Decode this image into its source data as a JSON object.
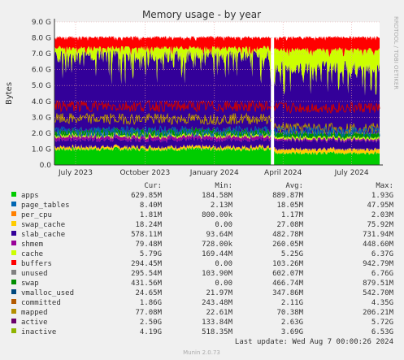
{
  "chart_data": {
    "type": "area",
    "title": "Memory usage - by year",
    "ylabel": "Bytes",
    "side_label": "RRDTOOL / TOBI OETIKER",
    "ylim": [
      0,
      9.0
    ],
    "y_ticks": [
      "0.0",
      "1.0 G",
      "2.0 G",
      "3.0 G",
      "4.0 G",
      "5.0 G",
      "6.0 G",
      "7.0 G",
      "8.0 G",
      "9.0 G"
    ],
    "y_tick_values": [
      0,
      1,
      2,
      3,
      4,
      5,
      6,
      7,
      8,
      9
    ],
    "x_range": [
      "2023-06-03",
      "2024-08-07"
    ],
    "x_ticks": [
      {
        "date": "2023-07-01",
        "label": "July 2023"
      },
      {
        "date": "2023-10-01",
        "label": "October 2023"
      },
      {
        "date": "2024-01-01",
        "label": "January 2024"
      },
      {
        "date": "2024-04-01",
        "label": "April 2024"
      },
      {
        "date": "2024-07-01",
        "label": "July 2024"
      }
    ],
    "gap_date": "2024-03-18",
    "grid": true,
    "series_stack": [
      {
        "name": "apps",
        "color": "#00cc00",
        "before": 1.0,
        "after": 0.75
      },
      {
        "name": "page_tables",
        "color": "#0066b3",
        "before": 0.0,
        "after": 0.0
      },
      {
        "name": "per_cpu",
        "color": "#ff8000",
        "before": 0.0,
        "after": 0.0
      },
      {
        "name": "swap_cache",
        "color": "#ffcc00",
        "before": 0.15,
        "after": 0.25
      },
      {
        "name": "slab_cache",
        "color": "#330099",
        "before": 0.45,
        "after": 0.55
      },
      {
        "name": "shmem",
        "color": "#990099",
        "before": 0.2,
        "after": 0.1
      },
      {
        "name": "cache",
        "color": "#ccff00",
        "before": 0.1,
        "after": 0.1
      },
      {
        "name": "buffers",
        "color": "#ff0000",
        "before": 0.0,
        "after": 0.0
      },
      {
        "name": "unused",
        "color": "#808080",
        "before": 0.0,
        "after": 0.0
      },
      {
        "name": "swap",
        "color": "#008f00",
        "before": 0.3,
        "after": 0.3
      },
      {
        "name": "vmalloc_used",
        "color": "#00487d",
        "before": 0.0,
        "after": 0.0
      }
    ],
    "stack_note": "",
    "big_layers": {
      "before": {
        "cache_top": 7.3,
        "unused_top": 7.5,
        "swap_top": 8.1
      },
      "after": {
        "cache_top": 6.6,
        "unused_top": 7.4,
        "swap_top": 8.1
      }
    },
    "lines": {
      "inactive": {
        "color": "#cc0000",
        "before": 3.7,
        "after": 3.6
      },
      "active": {
        "color": "#b38f00",
        "before": 2.9,
        "after": 2.3
      },
      "committed": {
        "color": "#0066b3",
        "before": 2.1,
        "after": 2.1
      }
    },
    "legend": [
      {
        "name": "apps",
        "color": "#00cc00",
        "cur": "629.85M",
        "min": "184.58M",
        "avg": "889.87M",
        "max": "1.93G"
      },
      {
        "name": "page_tables",
        "color": "#0066b3",
        "cur": "8.40M",
        "min": "2.13M",
        "avg": "18.05M",
        "max": "47.95M"
      },
      {
        "name": "per_cpu",
        "color": "#ff8000",
        "cur": "1.81M",
        "min": "800.00k",
        "avg": "1.17M",
        "max": "2.03M"
      },
      {
        "name": "swap_cache",
        "color": "#ffcc00",
        "cur": "18.24M",
        "min": "0.00",
        "avg": "27.08M",
        "max": "75.92M"
      },
      {
        "name": "slab_cache",
        "color": "#330099",
        "cur": "578.11M",
        "min": "93.64M",
        "avg": "482.78M",
        "max": "731.94M"
      },
      {
        "name": "shmem",
        "color": "#990099",
        "cur": "79.48M",
        "min": "728.00k",
        "avg": "260.05M",
        "max": "448.60M"
      },
      {
        "name": "cache",
        "color": "#ccff00",
        "cur": "5.79G",
        "min": "169.44M",
        "avg": "5.25G",
        "max": "6.37G"
      },
      {
        "name": "buffers",
        "color": "#ff0000",
        "cur": "294.45M",
        "min": "0.00",
        "avg": "103.26M",
        "max": "942.79M"
      },
      {
        "name": "unused",
        "color": "#808080",
        "cur": "295.54M",
        "min": "103.90M",
        "avg": "602.07M",
        "max": "6.76G"
      },
      {
        "name": "swap",
        "color": "#008f00",
        "cur": "431.56M",
        "min": "0.00",
        "avg": "466.74M",
        "max": "879.51M"
      },
      {
        "name": "vmalloc_used",
        "color": "#00487d",
        "cur": "24.65M",
        "min": "21.97M",
        "avg": "347.86M",
        "max": "542.70M"
      },
      {
        "name": "committed",
        "color": "#b35a00",
        "cur": "1.86G",
        "min": "243.48M",
        "avg": "2.11G",
        "max": "4.35G"
      },
      {
        "name": "mapped",
        "color": "#b38f00",
        "cur": "77.08M",
        "min": "22.61M",
        "avg": "70.38M",
        "max": "206.21M"
      },
      {
        "name": "active",
        "color": "#6b006b",
        "cur": "2.50G",
        "min": "133.84M",
        "avg": "2.63G",
        "max": "5.72G"
      },
      {
        "name": "inactive",
        "color": "#8fb300",
        "cur": "4.19G",
        "min": "518.35M",
        "avg": "3.69G",
        "max": "6.53G"
      }
    ],
    "legend_headers": [
      "Cur:",
      "Min:",
      "Avg:",
      "Max:"
    ],
    "last_update": "Last update: Wed Aug  7 00:00:26 2024",
    "footer": "Munin 2.0.73"
  }
}
